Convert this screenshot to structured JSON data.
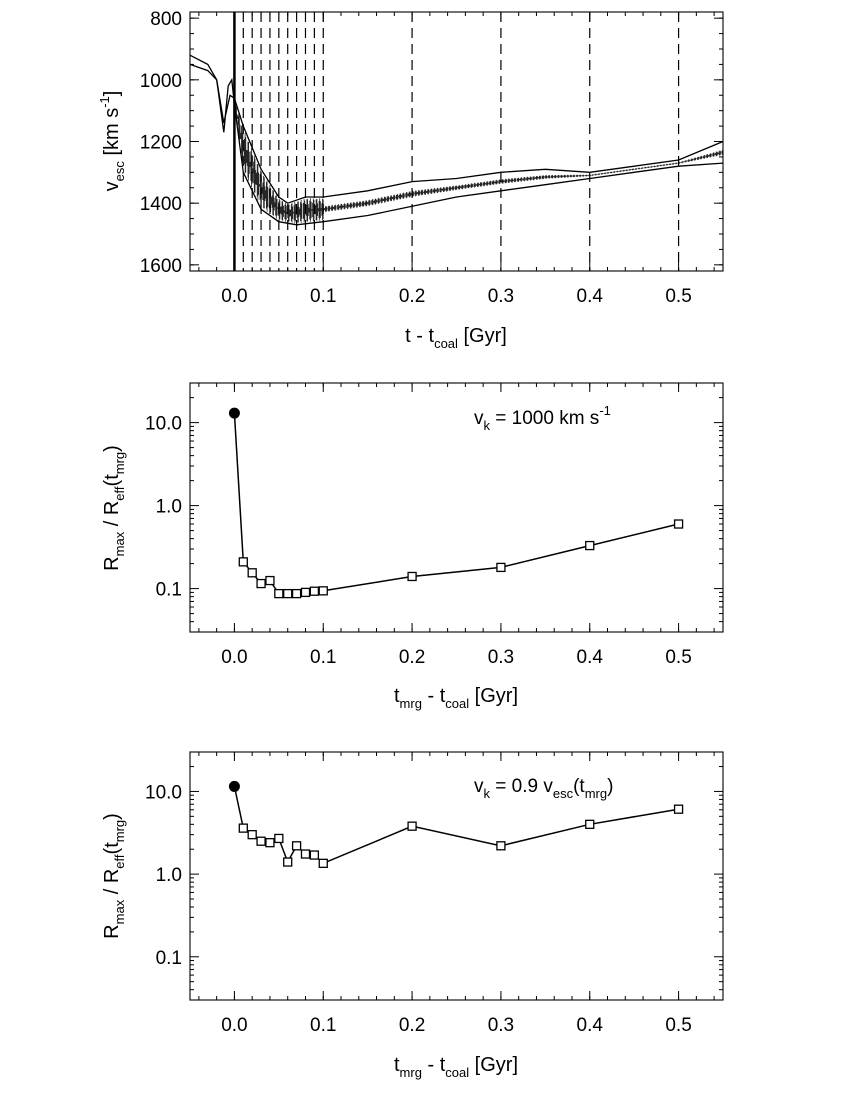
{
  "chart_data": [
    {
      "id": "panel-a",
      "type": "line",
      "title": "",
      "xlabel_main": "t - t",
      "xlabel_sub": "coal",
      "xlabel_tail": " [Gyr]",
      "ylabel_main": "v",
      "ylabel_sub": "esc",
      "ylabel_tail": " [km s",
      "ylabel_sup": "-1",
      "ylabel_close": "]",
      "xlim": [
        -0.05,
        0.55
      ],
      "ylim": [
        1620,
        780
      ],
      "y_inverted": true,
      "x_ticks": [
        0.0,
        0.1,
        0.2,
        0.3,
        0.4,
        0.5
      ],
      "x_tick_labels": [
        "0.0",
        "0.1",
        "0.2",
        "0.3",
        "0.4",
        "0.5"
      ],
      "y_ticks": [
        800,
        1000,
        1200,
        1400,
        1600
      ],
      "y_tick_labels": [
        "800",
        "1000",
        "1200",
        "1400",
        "1600"
      ],
      "coalescence_line_x": 0.0,
      "dashed_lines_x": [
        0.01,
        0.02,
        0.03,
        0.04,
        0.05,
        0.06,
        0.07,
        0.08,
        0.09,
        0.1,
        0.2,
        0.3,
        0.4,
        0.5
      ],
      "series": [
        {
          "name": "upper-track",
          "x": [
            -0.05,
            -0.03,
            -0.02,
            -0.012,
            -0.005,
            0.0,
            0.01,
            0.03,
            0.05,
            0.06,
            0.08,
            0.1,
            0.15,
            0.2,
            0.25,
            0.3,
            0.35,
            0.4,
            0.45,
            0.5,
            0.55
          ],
          "v": [
            920,
            950,
            1000,
            1140,
            1050,
            1060,
            1150,
            1290,
            1380,
            1400,
            1380,
            1380,
            1360,
            1330,
            1320,
            1300,
            1290,
            1300,
            1280,
            1260,
            1200
          ]
        },
        {
          "name": "lower-track",
          "x": [
            -0.05,
            -0.03,
            -0.02,
            -0.012,
            -0.007,
            -0.003,
            0.0,
            0.01,
            0.03,
            0.05,
            0.07,
            0.1,
            0.15,
            0.2,
            0.25,
            0.3,
            0.35,
            0.4,
            0.45,
            0.5,
            0.55
          ],
          "v": [
            950,
            970,
            1000,
            1170,
            1020,
            1000,
            1080,
            1300,
            1420,
            1460,
            1470,
            1460,
            1440,
            1410,
            1380,
            1360,
            1340,
            1320,
            1300,
            1280,
            1270
          ]
        }
      ]
    },
    {
      "id": "panel-b",
      "type": "line",
      "title": "",
      "xlabel_main": "t",
      "xlabel_sub1": "mrg",
      "xlabel_mid": " - t",
      "xlabel_sub2": "coal",
      "xlabel_tail": " [Gyr]",
      "ylabel_main": "R",
      "ylabel_sub1": "max",
      "ylabel_mid": " / R",
      "ylabel_sub2": "eff",
      "ylabel_paren": "(t",
      "ylabel_sub3": "mrg",
      "ylabel_close": ")",
      "annotation_main": "v",
      "annotation_sub": "k",
      "annotation_tail": " = 1000 km s",
      "annotation_sup": "-1",
      "yscale": "log",
      "xlim": [
        -0.05,
        0.55
      ],
      "ylim": [
        0.03,
        30
      ],
      "x_ticks": [
        0.0,
        0.1,
        0.2,
        0.3,
        0.4,
        0.5
      ],
      "x_tick_labels": [
        "0.0",
        "0.1",
        "0.2",
        "0.3",
        "0.4",
        "0.5"
      ],
      "y_ticks": [
        0.1,
        1.0,
        10.0
      ],
      "y_tick_labels": [
        "0.1",
        "1.0",
        "10.0"
      ],
      "filled_point": {
        "x": 0.0,
        "y": 13.0
      },
      "x": [
        0.0,
        0.01,
        0.02,
        0.03,
        0.04,
        0.05,
        0.06,
        0.07,
        0.08,
        0.09,
        0.1,
        0.2,
        0.3,
        0.4,
        0.5
      ],
      "y": [
        13.0,
        0.21,
        0.155,
        0.115,
        0.125,
        0.087,
        0.087,
        0.087,
        0.09,
        0.093,
        0.094,
        0.14,
        0.18,
        0.33,
        0.6
      ]
    },
    {
      "id": "panel-c",
      "type": "line",
      "title": "",
      "xlabel_main": "t",
      "xlabel_sub1": "mrg",
      "xlabel_mid": " - t",
      "xlabel_sub2": "coal",
      "xlabel_tail": " [Gyr]",
      "ylabel_main": "R",
      "ylabel_sub1": "max",
      "ylabel_mid": " / R",
      "ylabel_sub2": "eff",
      "ylabel_paren": "(t",
      "ylabel_sub3": "mrg",
      "ylabel_close": ")",
      "annotation_main": "v",
      "annotation_sub": "k",
      "annotation_tail": " = 0.9 v",
      "annotation_sub2": "esc",
      "annotation_paren": "(t",
      "annotation_sub3": "mrg",
      "annotation_close": ")",
      "yscale": "log",
      "xlim": [
        -0.05,
        0.55
      ],
      "ylim": [
        0.03,
        30
      ],
      "x_ticks": [
        0.0,
        0.1,
        0.2,
        0.3,
        0.4,
        0.5
      ],
      "x_tick_labels": [
        "0.0",
        "0.1",
        "0.2",
        "0.3",
        "0.4",
        "0.5"
      ],
      "y_ticks": [
        0.1,
        1.0,
        10.0
      ],
      "y_tick_labels": [
        "0.1",
        "1.0",
        "10.0"
      ],
      "filled_point": {
        "x": 0.0,
        "y": 11.5
      },
      "x": [
        0.0,
        0.01,
        0.02,
        0.03,
        0.04,
        0.05,
        0.06,
        0.07,
        0.08,
        0.09,
        0.1,
        0.2,
        0.3,
        0.4,
        0.5
      ],
      "y": [
        11.5,
        3.6,
        3.0,
        2.5,
        2.4,
        2.7,
        1.4,
        2.2,
        1.75,
        1.7,
        1.35,
        3.8,
        2.2,
        4.0,
        6.1
      ]
    }
  ]
}
